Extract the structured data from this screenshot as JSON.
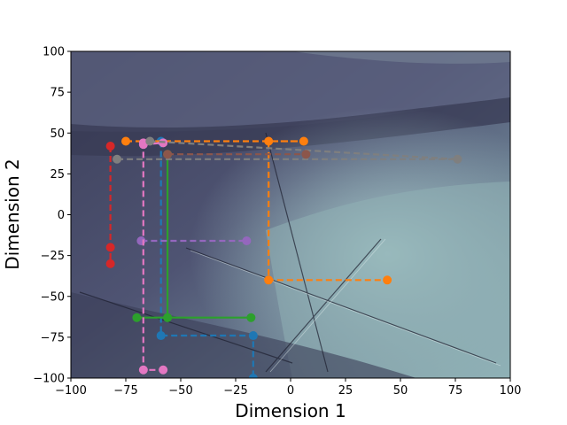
{
  "chart_data": {
    "type": "line",
    "title": "",
    "xlabel": "Dimension 1",
    "ylabel": "Dimension 2",
    "xlim": [
      -100,
      100
    ],
    "ylim": [
      -100,
      100
    ],
    "xticks": [
      -100,
      -75,
      -50,
      -25,
      0,
      25,
      50,
      75,
      100
    ],
    "yticks": [
      -100,
      -75,
      -50,
      -25,
      0,
      25,
      50,
      75,
      100
    ],
    "xtick_labels": [
      "−100",
      "−75",
      "−50",
      "−25",
      "0",
      "25",
      "50",
      "75",
      "100"
    ],
    "ytick_labels": [
      "−100",
      "−75",
      "−50",
      "−25",
      "0",
      "25",
      "50",
      "75",
      "100"
    ],
    "grid": false,
    "legend": "none",
    "background": "filled contour map (dark slate to pale teal)",
    "series": [
      {
        "color": "#1f77b4",
        "style": "dashed",
        "x": [
          -59,
          -59,
          -17,
          -17
        ],
        "y": [
          45,
          -74,
          -74,
          -100
        ]
      },
      {
        "color": "#ff7f0e",
        "style": "dashed",
        "x": [
          -75,
          6,
          -10,
          -10,
          44
        ],
        "y": [
          45,
          45,
          45,
          -40,
          -40
        ]
      },
      {
        "color": "#2ca02c",
        "style": "solid",
        "x": [
          -56,
          -56,
          -18,
          -56,
          -70
        ],
        "y": [
          37,
          -63,
          -63,
          -63,
          -63
        ]
      },
      {
        "color": "#d62728",
        "style": "dashed",
        "x": [
          -82,
          -82,
          -82
        ],
        "y": [
          42,
          -20,
          -30
        ]
      },
      {
        "color": "#9467bd",
        "style": "dashed",
        "x": [
          -68,
          -20
        ],
        "y": [
          -16,
          -16
        ]
      },
      {
        "color": "#e377c2",
        "style": "dashed",
        "x": [
          -67,
          -58,
          -67,
          -67,
          -58
        ],
        "y": [
          43,
          44,
          44,
          -95,
          -95
        ]
      },
      {
        "color": "#7f7f7f",
        "style": "dashed",
        "x": [
          -79,
          76,
          -64
        ],
        "y": [
          34,
          34,
          45
        ]
      },
      {
        "color": "#8c564b",
        "style": "dashed",
        "x": [
          -56,
          7
        ],
        "y": [
          37,
          37
        ]
      }
    ]
  }
}
